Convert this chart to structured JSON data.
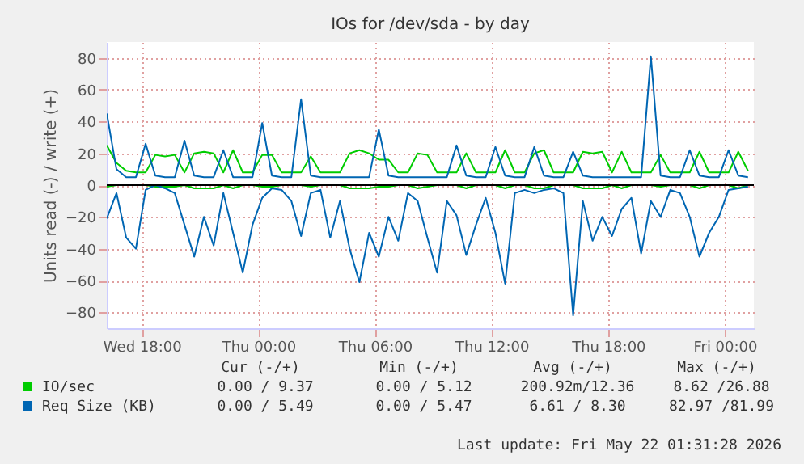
{
  "chart_data": {
    "type": "line",
    "title": "IOs for /dev/sda - by day",
    "ylabel": "Units read (-) / write (+)",
    "x": [
      "2026-05-20T16:12",
      "2026-05-20T16:42",
      "2026-05-20T17:12",
      "2026-05-20T17:42",
      "2026-05-20T18:12",
      "2026-05-20T18:42",
      "2026-05-20T19:12",
      "2026-05-20T19:42",
      "2026-05-20T20:12",
      "2026-05-20T20:42",
      "2026-05-20T21:12",
      "2026-05-20T21:42",
      "2026-05-20T22:12",
      "2026-05-20T22:42",
      "2026-05-20T23:12",
      "2026-05-20T23:42",
      "2026-05-21T00:12",
      "2026-05-21T00:42",
      "2026-05-21T01:12",
      "2026-05-21T01:42",
      "2026-05-21T02:12",
      "2026-05-21T02:42",
      "2026-05-21T03:12",
      "2026-05-21T03:42",
      "2026-05-21T04:12",
      "2026-05-21T04:42",
      "2026-05-21T05:12",
      "2026-05-21T05:42",
      "2026-05-21T06:12",
      "2026-05-21T06:42",
      "2026-05-21T07:12",
      "2026-05-21T07:42",
      "2026-05-21T08:12",
      "2026-05-21T08:42",
      "2026-05-21T09:12",
      "2026-05-21T09:42",
      "2026-05-21T10:12",
      "2026-05-21T10:42",
      "2026-05-21T11:12",
      "2026-05-21T11:42",
      "2026-05-21T12:12",
      "2026-05-21T12:42",
      "2026-05-21T13:12",
      "2026-05-21T13:42",
      "2026-05-21T14:12",
      "2026-05-21T14:42",
      "2026-05-21T15:12",
      "2026-05-21T15:42",
      "2026-05-21T16:12",
      "2026-05-21T16:42",
      "2026-05-21T17:12",
      "2026-05-21T17:42",
      "2026-05-21T18:12",
      "2026-05-21T18:42",
      "2026-05-21T19:12",
      "2026-05-21T19:42",
      "2026-05-21T20:12",
      "2026-05-21T20:42",
      "2026-05-21T21:12",
      "2026-05-21T21:42",
      "2026-05-21T22:12",
      "2026-05-21T22:42",
      "2026-05-21T23:12",
      "2026-05-21T23:42",
      "2026-05-22T00:12",
      "2026-05-22T00:42",
      "2026-05-22T01:12"
    ],
    "series": [
      {
        "name": "IO/sec",
        "color": "#00cc00",
        "values": [
          25,
          14,
          9,
          8,
          8,
          19,
          18,
          19,
          8,
          20,
          21,
          20,
          8,
          22,
          8,
          8,
          19,
          19,
          8,
          8,
          8,
          18,
          8,
          8,
          8,
          20,
          22,
          20,
          16,
          16,
          8,
          8,
          20,
          19,
          8,
          8,
          8,
          20,
          8,
          8,
          8,
          22,
          8,
          8,
          20,
          22,
          8,
          8,
          8,
          21,
          20,
          21,
          8,
          21,
          8,
          8,
          8,
          19,
          8,
          8,
          8,
          21,
          8,
          8,
          8,
          21,
          9
        ]
      },
      {
        "color": "#00cc00",
        "values": [
          -1,
          0,
          0,
          0,
          0,
          -1,
          -1,
          -1,
          0,
          -2,
          -2,
          -2,
          0,
          -2,
          0,
          0,
          -1,
          -1,
          0,
          0,
          0,
          -1,
          0,
          0,
          0,
          -2,
          -2,
          -2,
          -1,
          -1,
          0,
          0,
          -2,
          -1,
          0,
          0,
          0,
          -2,
          0,
          0,
          0,
          -2,
          0,
          0,
          -2,
          -2,
          0,
          0,
          0,
          -2,
          -2,
          -2,
          0,
          -2,
          0,
          0,
          0,
          -1,
          0,
          0,
          0,
          -2,
          0,
          0,
          0,
          -2,
          0
        ]
      },
      {
        "name": "Req Size (KB)",
        "color": "#0066b3",
        "values": [
          45,
          10,
          5,
          5,
          26,
          6,
          5,
          5,
          28,
          6,
          5,
          5,
          22,
          5,
          5,
          5,
          39,
          6,
          5,
          5,
          54,
          6,
          5,
          5,
          5,
          5,
          5,
          5,
          35,
          6,
          5,
          5,
          5,
          5,
          5,
          5,
          25,
          6,
          5,
          5,
          24,
          6,
          5,
          5,
          24,
          6,
          5,
          5,
          21,
          6,
          5,
          5,
          5,
          5,
          5,
          5,
          81,
          6,
          5,
          5,
          22,
          6,
          5,
          5,
          22,
          6,
          5
        ]
      },
      {
        "color": "#0066b3",
        "values": [
          -21,
          -5,
          -33,
          -40,
          -3,
          0,
          -2,
          -5,
          -25,
          -45,
          -20,
          -38,
          -5,
          -30,
          -55,
          -25,
          -8,
          -2,
          -3,
          -10,
          -32,
          -5,
          -3,
          -33,
          -10,
          -40,
          -61,
          -30,
          -45,
          -20,
          -35,
          -5,
          -10,
          -33,
          -55,
          -10,
          -19,
          -44,
          -25,
          -8,
          -30,
          -62,
          -5,
          -3,
          -5,
          -3,
          -2,
          -5,
          -82,
          -10,
          -35,
          -20,
          -32,
          -15,
          -8,
          -43,
          -10,
          -20,
          -3,
          -5,
          -20,
          -45,
          -30,
          -20,
          -3,
          -2,
          -1
        ]
      }
    ],
    "xlim": [
      "2026-05-20T16:12",
      "2026-05-22T01:30"
    ],
    "xticks": [
      {
        "value": "2026-05-20T18:00",
        "label": "Wed 18:00"
      },
      {
        "value": "2026-05-21T00:00",
        "label": "Thu 00:00"
      },
      {
        "value": "2026-05-21T06:00",
        "label": "Thu 06:00"
      },
      {
        "value": "2026-05-21T12:00",
        "label": "Thu 12:00"
      },
      {
        "value": "2026-05-21T18:00",
        "label": "Thu 18:00"
      },
      {
        "value": "2026-05-22T00:00",
        "label": "Fri 00:00"
      }
    ],
    "ylim": [
      -90,
      90
    ],
    "yticks": [
      -80,
      -60,
      -40,
      -20,
      0,
      20,
      40,
      60,
      80
    ],
    "grid": true,
    "legend": "bottom",
    "line_style": "solid",
    "ref_lines": [
      {
        "axis": "y",
        "value": 0,
        "color": "#000000"
      }
    ],
    "annotations": [
      "Cur (-/+)",
      "Min (-/+)",
      "Avg (-/+)",
      "Max (-/+)",
      "0.00 / 9.37",
      "0.00 / 5.12",
      "200.92m/12.36",
      "8.62 /26.88",
      "0.00 / 5.49",
      "0.00 / 5.47",
      "6.61 / 8.30",
      "82.97 /81.99",
      "Last update: Fri May 22 01:31:28 2026"
    ]
  }
}
